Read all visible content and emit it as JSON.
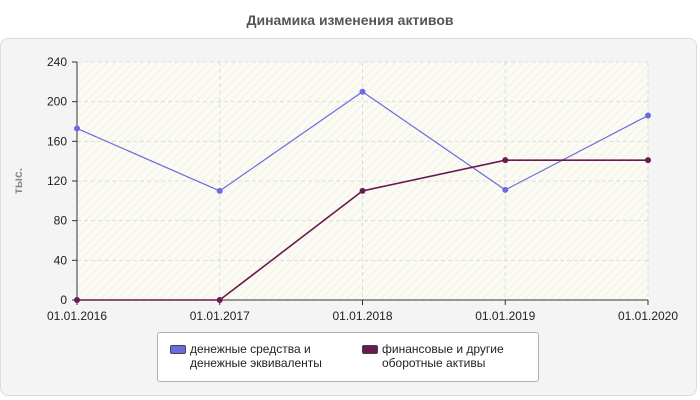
{
  "chart_data": {
    "type": "line",
    "title": "Динамика изменения активов",
    "ylabel": "тыс.",
    "xlabel": "",
    "categories": [
      "01.01.2016",
      "01.01.2017",
      "01.01.2018",
      "01.01.2019",
      "01.01.2020"
    ],
    "ylim": [
      0,
      240
    ],
    "yticks": [
      0,
      40,
      80,
      120,
      160,
      200,
      240
    ],
    "grid": true,
    "legend_position": "bottom",
    "series": [
      {
        "name": "денежные средства и денежные эквиваленты",
        "name_lines": [
          "денежные средства и",
          "денежные эквиваленты"
        ],
        "color": "#6b6be0",
        "values": [
          173,
          110,
          210,
          111,
          186
        ]
      },
      {
        "name": "финансовые и другие оборотные активы",
        "name_lines": [
          "финансовые и другие",
          "оборотные активы"
        ],
        "color": "#6a1a50",
        "values": [
          0,
          0,
          110,
          141,
          141
        ]
      }
    ]
  }
}
